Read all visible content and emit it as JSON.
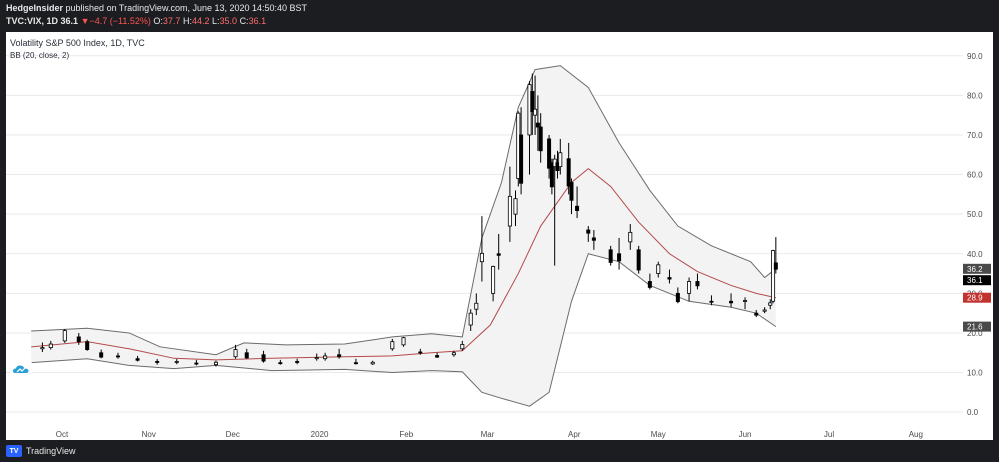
{
  "header": {
    "publisher": "HedgeInsider",
    "published_text": "published on TradingView.com, June 13, 2020 14:50:40 BST",
    "symbol": "TVC:VIX, 1D",
    "last": "36.1",
    "change": "▼−4.7 (−11.52%)",
    "open_label": "O:",
    "open": "37.7",
    "high_label": "H:",
    "high": "44.2",
    "low_label": "L:",
    "low": "35.0",
    "close_label": "C:",
    "close": "36.1"
  },
  "legend": {
    "title": "Volatility S&P 500 Index, 1D, TVC",
    "bb": "BB (20, close, 2)"
  },
  "footer": {
    "brand": "TradingView"
  },
  "colors": {
    "up": "#ffffff",
    "down": "#000000",
    "wick": "#000000",
    "band": "#6b6b6b",
    "basis": "#b34a4a",
    "band_fill": "#f3f3f3",
    "grid": "#e9e9e9",
    "tag_gray": "#4a4a4a",
    "tag_black": "#000000",
    "tag_red": "#c2322f"
  },
  "icons": {
    "chart_watermark": "tradingview-cloud-icon",
    "brand": "tradingview-logo-icon"
  },
  "chart_data": {
    "type": "candlestick",
    "title": "Volatility S&P 500 Index, 1D, TVC",
    "indicator": "BB (20, close, 2)",
    "y_ticks": [
      0.0,
      10.0,
      20.0,
      30.0,
      40.0,
      50.0,
      60.0,
      70.0,
      80.0,
      90.0
    ],
    "ylim": [
      -4,
      96
    ],
    "x_months": [
      "Oct",
      "Nov",
      "Dec",
      "2020",
      "Feb",
      "Mar",
      "Apr",
      "May",
      "Jun",
      "Jul",
      "Aug"
    ],
    "price_tags": [
      {
        "label": "36.2",
        "value": 36.2,
        "style": "gray"
      },
      {
        "label": "36.1",
        "value": 36.1,
        "style": "black"
      },
      {
        "label": "28.9",
        "value": 28.9,
        "style": "red"
      },
      {
        "label": "21.6",
        "value": 21.6,
        "style": "gray"
      }
    ],
    "candles": [
      {
        "date": "2019-09-24",
        "o": 16.0,
        "h": 17.6,
        "l": 15.2,
        "c": 16.3
      },
      {
        "date": "2019-09-27",
        "o": 16.3,
        "h": 18.0,
        "l": 15.8,
        "c": 17.2
      },
      {
        "date": "2019-10-02",
        "o": 18.0,
        "h": 21.0,
        "l": 17.5,
        "c": 20.6
      },
      {
        "date": "2019-10-07",
        "o": 19.0,
        "h": 20.0,
        "l": 17.0,
        "c": 17.8
      },
      {
        "date": "2019-10-10",
        "o": 17.8,
        "h": 18.3,
        "l": 15.5,
        "c": 15.8
      },
      {
        "date": "2019-10-15",
        "o": 15.0,
        "h": 15.8,
        "l": 13.6,
        "c": 13.9
      },
      {
        "date": "2019-10-21",
        "o": 14.2,
        "h": 15.0,
        "l": 13.5,
        "c": 14.0
      },
      {
        "date": "2019-10-28",
        "o": 13.5,
        "h": 14.2,
        "l": 12.8,
        "c": 13.1
      },
      {
        "date": "2019-11-04",
        "o": 12.8,
        "h": 13.4,
        "l": 12.0,
        "c": 12.6
      },
      {
        "date": "2019-11-11",
        "o": 12.7,
        "h": 13.4,
        "l": 12.1,
        "c": 12.8
      },
      {
        "date": "2019-11-18",
        "o": 12.4,
        "h": 13.2,
        "l": 11.8,
        "c": 12.3
      },
      {
        "date": "2019-11-25",
        "o": 12.0,
        "h": 13.0,
        "l": 11.5,
        "c": 12.6
      },
      {
        "date": "2019-12-02",
        "o": 14.0,
        "h": 17.0,
        "l": 13.5,
        "c": 15.8
      },
      {
        "date": "2019-12-06",
        "o": 15.0,
        "h": 16.0,
        "l": 13.5,
        "c": 13.7
      },
      {
        "date": "2019-12-12",
        "o": 14.5,
        "h": 15.5,
        "l": 12.5,
        "c": 12.9
      },
      {
        "date": "2019-12-18",
        "o": 12.5,
        "h": 13.2,
        "l": 12.0,
        "c": 12.4
      },
      {
        "date": "2019-12-24",
        "o": 12.8,
        "h": 13.5,
        "l": 12.1,
        "c": 12.7
      },
      {
        "date": "2019-12-31",
        "o": 13.5,
        "h": 14.8,
        "l": 13.0,
        "c": 13.8
      },
      {
        "date": "2020-01-03",
        "o": 13.5,
        "h": 15.0,
        "l": 13.0,
        "c": 14.2
      },
      {
        "date": "2020-01-08",
        "o": 14.5,
        "h": 16.0,
        "l": 13.5,
        "c": 14.0
      },
      {
        "date": "2020-01-14",
        "o": 12.5,
        "h": 13.5,
        "l": 12.0,
        "c": 12.4
      },
      {
        "date": "2020-01-20",
        "o": 12.2,
        "h": 13.0,
        "l": 11.9,
        "c": 12.6
      },
      {
        "date": "2020-01-27",
        "o": 16.0,
        "h": 18.5,
        "l": 15.5,
        "c": 17.8
      },
      {
        "date": "2020-01-31",
        "o": 17.0,
        "h": 19.0,
        "l": 16.5,
        "c": 18.8
      },
      {
        "date": "2020-02-06",
        "o": 15.2,
        "h": 16.0,
        "l": 14.5,
        "c": 15.0
      },
      {
        "date": "2020-02-12",
        "o": 14.3,
        "h": 15.0,
        "l": 13.7,
        "c": 13.9
      },
      {
        "date": "2020-02-18",
        "o": 14.5,
        "h": 15.5,
        "l": 14.0,
        "c": 15.0
      },
      {
        "date": "2020-02-21",
        "o": 16.0,
        "h": 18.0,
        "l": 15.5,
        "c": 17.1
      },
      {
        "date": "2020-02-24",
        "o": 22.0,
        "h": 26.0,
        "l": 20.5,
        "c": 25.0
      },
      {
        "date": "2020-02-26",
        "o": 26.0,
        "h": 30.0,
        "l": 24.5,
        "c": 27.5
      },
      {
        "date": "2020-02-28",
        "o": 38.0,
        "h": 49.5,
        "l": 33.0,
        "c": 40.1
      },
      {
        "date": "2020-03-03",
        "o": 30.0,
        "h": 37.0,
        "l": 28.0,
        "c": 36.8
      },
      {
        "date": "2020-03-05",
        "o": 40.0,
        "h": 45.0,
        "l": 36.0,
        "c": 39.6
      },
      {
        "date": "2020-03-09",
        "o": 47.0,
        "h": 62.0,
        "l": 43.0,
        "c": 54.5
      },
      {
        "date": "2020-03-11",
        "o": 50.0,
        "h": 56.0,
        "l": 47.0,
        "c": 53.9
      },
      {
        "date": "2020-03-12",
        "o": 59.0,
        "h": 76.0,
        "l": 57.0,
        "c": 75.5
      },
      {
        "date": "2020-03-13",
        "o": 70.0,
        "h": 77.0,
        "l": 55.0,
        "c": 57.8
      },
      {
        "date": "2020-03-16",
        "o": 70.0,
        "h": 83.6,
        "l": 60.0,
        "c": 82.7
      },
      {
        "date": "2020-03-17",
        "o": 81.0,
        "h": 85.5,
        "l": 70.0,
        "c": 75.9
      },
      {
        "date": "2020-03-18",
        "o": 75.0,
        "h": 85.0,
        "l": 70.0,
        "c": 76.5
      },
      {
        "date": "2020-03-19",
        "o": 73.0,
        "h": 80.0,
        "l": 66.0,
        "c": 72.0
      },
      {
        "date": "2020-03-20",
        "o": 72.0,
        "h": 75.5,
        "l": 63.0,
        "c": 66.0
      },
      {
        "date": "2020-03-23",
        "o": 69.0,
        "h": 70.0,
        "l": 59.0,
        "c": 61.6
      },
      {
        "date": "2020-03-24",
        "o": 63.0,
        "h": 64.0,
        "l": 55.0,
        "c": 56.9
      },
      {
        "date": "2020-03-25",
        "o": 62.0,
        "h": 65.0,
        "l": 37.0,
        "c": 63.9
      },
      {
        "date": "2020-03-26",
        "o": 63.0,
        "h": 66.0,
        "l": 59.0,
        "c": 61.0
      },
      {
        "date": "2020-03-27",
        "o": 62.0,
        "h": 69.0,
        "l": 60.0,
        "c": 65.5
      },
      {
        "date": "2020-03-30",
        "o": 64.0,
        "h": 68.0,
        "l": 55.0,
        "c": 57.1
      },
      {
        "date": "2020-03-31",
        "o": 58.0,
        "h": 59.0,
        "l": 50.0,
        "c": 53.5
      },
      {
        "date": "2020-04-02",
        "o": 52.0,
        "h": 57.0,
        "l": 49.0,
        "c": 50.9
      },
      {
        "date": "2020-04-06",
        "o": 46.0,
        "h": 47.0,
        "l": 43.0,
        "c": 45.2
      },
      {
        "date": "2020-04-08",
        "o": 44.0,
        "h": 46.0,
        "l": 41.0,
        "c": 43.4
      },
      {
        "date": "2020-04-14",
        "o": 41.0,
        "h": 42.0,
        "l": 37.0,
        "c": 37.8
      },
      {
        "date": "2020-04-17",
        "o": 40.0,
        "h": 44.0,
        "l": 36.0,
        "c": 38.2
      },
      {
        "date": "2020-04-21",
        "o": 43.0,
        "h": 47.5,
        "l": 41.0,
        "c": 45.4
      },
      {
        "date": "2020-04-24",
        "o": 41.0,
        "h": 42.0,
        "l": 35.0,
        "c": 35.9
      },
      {
        "date": "2020-04-28",
        "o": 33.0,
        "h": 35.0,
        "l": 31.0,
        "c": 31.5
      },
      {
        "date": "2020-05-01",
        "o": 35.0,
        "h": 38.0,
        "l": 34.0,
        "c": 37.2
      },
      {
        "date": "2020-05-05",
        "o": 34.0,
        "h": 36.0,
        "l": 32.5,
        "c": 33.6
      },
      {
        "date": "2020-05-08",
        "o": 30.0,
        "h": 31.5,
        "l": 27.5,
        "c": 27.9
      },
      {
        "date": "2020-05-12",
        "o": 30.0,
        "h": 34.0,
        "l": 28.0,
        "c": 33.0
      },
      {
        "date": "2020-05-15",
        "o": 33.0,
        "h": 35.0,
        "l": 31.0,
        "c": 31.9
      },
      {
        "date": "2020-05-20",
        "o": 28.0,
        "h": 29.5,
        "l": 27.0,
        "c": 27.9
      },
      {
        "date": "2020-05-27",
        "o": 28.0,
        "h": 30.0,
        "l": 26.5,
        "c": 27.6
      },
      {
        "date": "2020-06-01",
        "o": 28.0,
        "h": 29.0,
        "l": 26.0,
        "c": 28.2
      },
      {
        "date": "2020-06-05",
        "o": 25.0,
        "h": 25.8,
        "l": 24.0,
        "c": 24.5
      },
      {
        "date": "2020-06-08",
        "o": 25.5,
        "h": 26.5,
        "l": 25.0,
        "c": 25.8
      },
      {
        "date": "2020-06-10",
        "o": 27.0,
        "h": 28.5,
        "l": 26.0,
        "c": 27.6
      },
      {
        "date": "2020-06-11",
        "o": 28.0,
        "h": 41.0,
        "l": 27.5,
        "c": 40.8
      },
      {
        "date": "2020-06-12",
        "o": 37.7,
        "h": 44.2,
        "l": 35.0,
        "c": 36.1
      }
    ],
    "bb_upper": [
      {
        "date": "2019-09-20",
        "v": 20.5
      },
      {
        "date": "2019-10-10",
        "v": 21.2
      },
      {
        "date": "2019-10-25",
        "v": 20.0
      },
      {
        "date": "2019-11-05",
        "v": 16.5
      },
      {
        "date": "2019-11-25",
        "v": 14.5
      },
      {
        "date": "2019-12-05",
        "v": 17.5
      },
      {
        "date": "2019-12-20",
        "v": 17.0
      },
      {
        "date": "2020-01-10",
        "v": 17.2
      },
      {
        "date": "2020-01-27",
        "v": 19.0
      },
      {
        "date": "2020-02-10",
        "v": 19.8
      },
      {
        "date": "2020-02-21",
        "v": 19.0
      },
      {
        "date": "2020-02-28",
        "v": 44.0
      },
      {
        "date": "2020-03-06",
        "v": 58.0
      },
      {
        "date": "2020-03-12",
        "v": 77.0
      },
      {
        "date": "2020-03-18",
        "v": 86.5
      },
      {
        "date": "2020-03-27",
        "v": 87.5
      },
      {
        "date": "2020-04-06",
        "v": 82.0
      },
      {
        "date": "2020-04-17",
        "v": 68.0
      },
      {
        "date": "2020-04-28",
        "v": 56.0
      },
      {
        "date": "2020-05-08",
        "v": 47.0
      },
      {
        "date": "2020-05-20",
        "v": 42.0
      },
      {
        "date": "2020-06-03",
        "v": 38.0
      },
      {
        "date": "2020-06-08",
        "v": 34.0
      },
      {
        "date": "2020-06-12",
        "v": 36.2
      }
    ],
    "bb_basis": [
      {
        "date": "2019-09-20",
        "v": 16.5
      },
      {
        "date": "2019-10-10",
        "v": 17.8
      },
      {
        "date": "2019-10-25",
        "v": 16.0
      },
      {
        "date": "2019-11-10",
        "v": 13.6
      },
      {
        "date": "2019-11-25",
        "v": 13.2
      },
      {
        "date": "2019-12-15",
        "v": 13.6
      },
      {
        "date": "2020-01-10",
        "v": 14.0
      },
      {
        "date": "2020-01-27",
        "v": 14.2
      },
      {
        "date": "2020-02-10",
        "v": 15.0
      },
      {
        "date": "2020-02-21",
        "v": 15.5
      },
      {
        "date": "2020-03-02",
        "v": 22.0
      },
      {
        "date": "2020-03-12",
        "v": 35.0
      },
      {
        "date": "2020-03-20",
        "v": 47.0
      },
      {
        "date": "2020-03-31",
        "v": 58.0
      },
      {
        "date": "2020-04-06",
        "v": 61.5
      },
      {
        "date": "2020-04-14",
        "v": 57.0
      },
      {
        "date": "2020-04-24",
        "v": 48.0
      },
      {
        "date": "2020-05-05",
        "v": 40.0
      },
      {
        "date": "2020-05-15",
        "v": 35.5
      },
      {
        "date": "2020-05-27",
        "v": 32.0
      },
      {
        "date": "2020-06-05",
        "v": 30.0
      },
      {
        "date": "2020-06-12",
        "v": 28.9
      }
    ],
    "bb_lower": [
      {
        "date": "2019-09-20",
        "v": 12.5
      },
      {
        "date": "2019-10-10",
        "v": 13.5
      },
      {
        "date": "2019-10-25",
        "v": 11.8
      },
      {
        "date": "2019-11-10",
        "v": 11.0
      },
      {
        "date": "2019-11-25",
        "v": 11.8
      },
      {
        "date": "2019-12-15",
        "v": 10.5
      },
      {
        "date": "2020-01-10",
        "v": 10.8
      },
      {
        "date": "2020-01-27",
        "v": 10.0
      },
      {
        "date": "2020-02-10",
        "v": 10.5
      },
      {
        "date": "2020-02-21",
        "v": 10.2
      },
      {
        "date": "2020-02-28",
        "v": 5.0
      },
      {
        "date": "2020-03-06",
        "v": 3.5
      },
      {
        "date": "2020-03-16",
        "v": 1.5
      },
      {
        "date": "2020-03-23",
        "v": 5.0
      },
      {
        "date": "2020-03-31",
        "v": 28.0
      },
      {
        "date": "2020-04-06",
        "v": 40.0
      },
      {
        "date": "2020-04-17",
        "v": 38.0
      },
      {
        "date": "2020-04-28",
        "v": 32.0
      },
      {
        "date": "2020-05-12",
        "v": 28.0
      },
      {
        "date": "2020-05-27",
        "v": 26.5
      },
      {
        "date": "2020-06-05",
        "v": 25.0
      },
      {
        "date": "2020-06-12",
        "v": 21.6
      }
    ]
  }
}
